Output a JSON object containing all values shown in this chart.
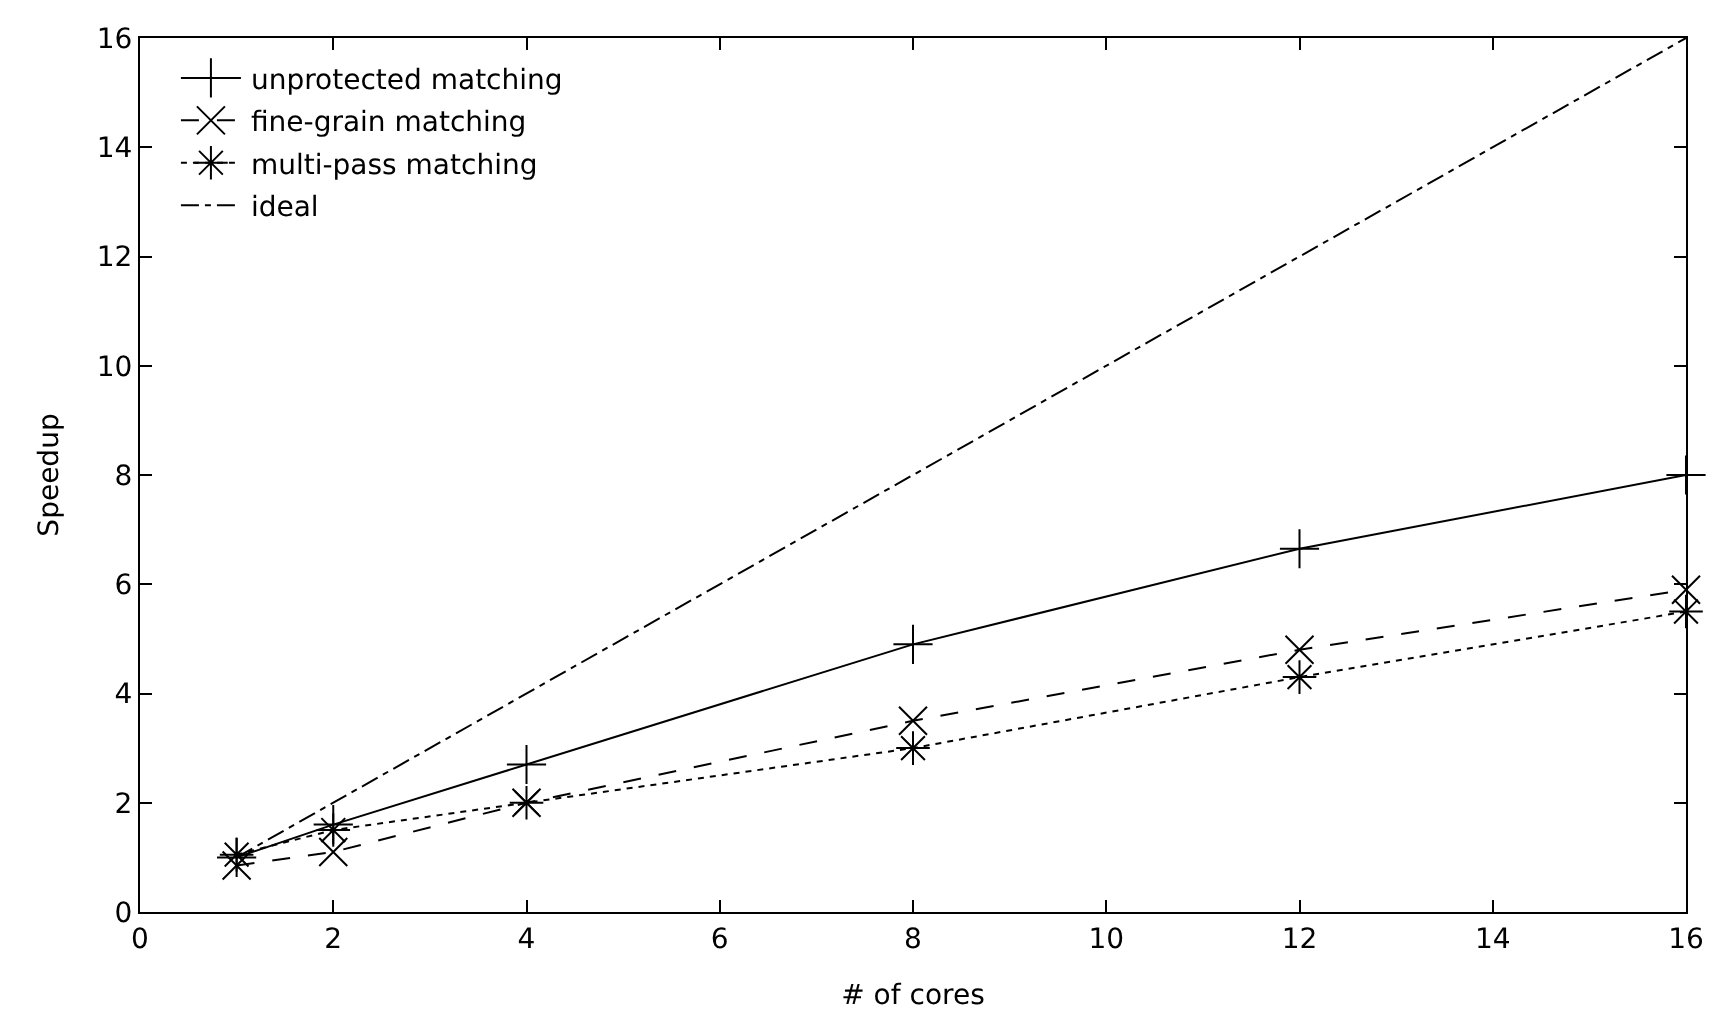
{
  "chart_data": {
    "type": "line",
    "xlabel": "# of cores",
    "ylabel": "Speedup",
    "x": [
      1,
      2,
      4,
      8,
      12,
      16
    ],
    "series": [
      {
        "name": "unprotected matching",
        "color": "#000000",
        "values": [
          1.0,
          1.6,
          2.7,
          4.9,
          6.65,
          8.0
        ],
        "marker": "plus",
        "line_style": "solid"
      },
      {
        "name": "fine-grain matching",
        "color": "#000000",
        "values": [
          0.85,
          1.1,
          2.0,
          3.5,
          4.8,
          5.9
        ],
        "marker": "x",
        "line_style": "dashed"
      },
      {
        "name": "multi-pass matching",
        "color": "#000000",
        "values": [
          1.05,
          1.5,
          2.0,
          3.0,
          4.3,
          5.5
        ],
        "marker": "cross",
        "line_style": "dotted"
      },
      {
        "name": "ideal",
        "color": "#000000",
        "x": [
          1,
          16
        ],
        "values": [
          1,
          16
        ],
        "marker": "none",
        "line_style": "dashdot"
      }
    ],
    "xlim": [
      0,
      16
    ],
    "xticks": [
      0,
      2,
      4,
      6,
      8,
      10,
      12,
      14,
      16
    ],
    "ylim": [
      0,
      16
    ],
    "yticks": [
      0,
      2,
      4,
      6,
      8,
      10,
      12,
      14,
      16
    ],
    "grid": false,
    "legend": "top left"
  }
}
